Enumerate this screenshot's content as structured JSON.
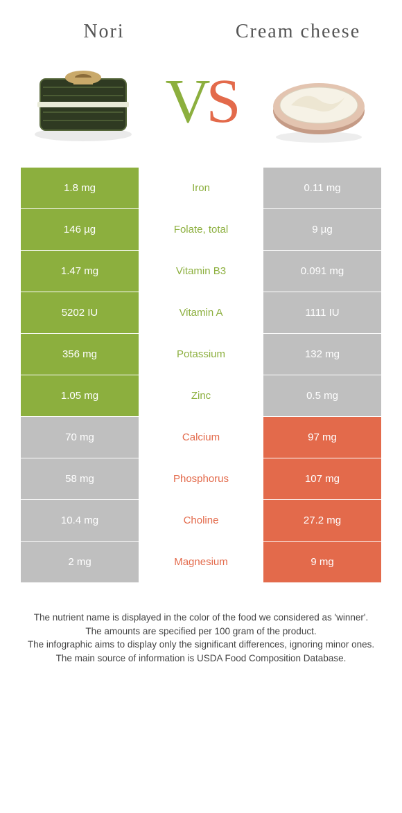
{
  "foods": {
    "left": {
      "name": "Nori",
      "color": "#8caf3e"
    },
    "right": {
      "name": "Cream cheese",
      "color": "#e36a4b"
    }
  },
  "vs": {
    "v": "V",
    "s": "S"
  },
  "colors": {
    "green": "#8caf3e",
    "orange": "#e36a4b",
    "gray": "#bfbfbf",
    "white": "#ffffff"
  },
  "rows": [
    {
      "nutrient": "Iron",
      "left": "1.8 mg",
      "right": "0.11 mg",
      "winner": "left"
    },
    {
      "nutrient": "Folate, total",
      "left": "146 µg",
      "right": "9 µg",
      "winner": "left"
    },
    {
      "nutrient": "Vitamin B3",
      "left": "1.47 mg",
      "right": "0.091 mg",
      "winner": "left"
    },
    {
      "nutrient": "Vitamin A",
      "left": "5202 IU",
      "right": "1111 IU",
      "winner": "left"
    },
    {
      "nutrient": "Potassium",
      "left": "356 mg",
      "right": "132 mg",
      "winner": "left"
    },
    {
      "nutrient": "Zinc",
      "left": "1.05 mg",
      "right": "0.5 mg",
      "winner": "left"
    },
    {
      "nutrient": "Calcium",
      "left": "70 mg",
      "right": "97 mg",
      "winner": "right"
    },
    {
      "nutrient": "Phosphorus",
      "left": "58 mg",
      "right": "107 mg",
      "winner": "right"
    },
    {
      "nutrient": "Choline",
      "left": "10.4 mg",
      "right": "27.2 mg",
      "winner": "right"
    },
    {
      "nutrient": "Magnesium",
      "left": "2 mg",
      "right": "9 mg",
      "winner": "right"
    }
  ],
  "footer": [
    "The nutrient name is displayed in the color of the food we considered as 'winner'.",
    "The amounts are specified per 100 gram of the product.",
    "The infographic aims to display only the significant differences, ignoring minor ones.",
    "The main source of information is USDA Food Composition Database."
  ]
}
